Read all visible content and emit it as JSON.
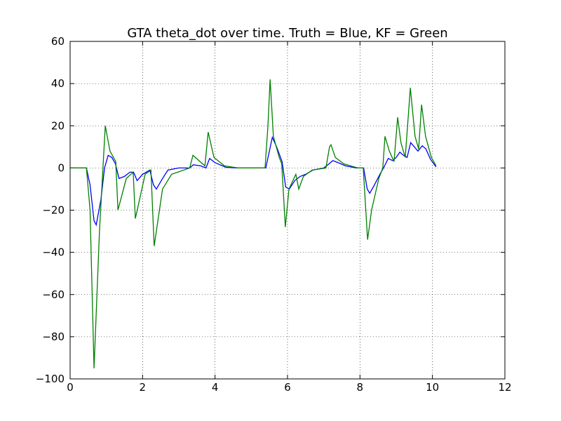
{
  "chart_data": {
    "type": "line",
    "title": "GTA theta_dot over time. Truth = Blue, KF = Green",
    "xlim": [
      0,
      12
    ],
    "xticks": [
      0,
      2,
      4,
      6,
      8,
      10,
      12
    ],
    "ylim": [
      -100,
      60
    ],
    "yticks": [
      {
        "value": -100,
        "label": "−100"
      },
      {
        "value": -80,
        "label": "−80"
      },
      {
        "value": -60,
        "label": "−60"
      },
      {
        "value": -40,
        "label": "−40"
      },
      {
        "value": -20,
        "label": "−20"
      },
      0,
      20,
      40,
      60
    ],
    "grid": true,
    "series": [
      {
        "color": "#0000ff",
        "x": [
          0,
          0.45,
          0.55,
          0.66,
          0.72,
          0.85,
          0.95,
          1.05,
          1.15,
          1.25,
          1.35,
          1.5,
          1.65,
          1.75,
          1.85,
          2.0,
          2.2,
          2.3,
          2.38,
          2.55,
          2.7,
          3.0,
          3.3,
          3.4,
          3.6,
          3.75,
          3.85,
          4.0,
          4.3,
          4.6,
          5.4,
          5.5,
          5.58,
          5.7,
          5.85,
          5.95,
          6.05,
          6.2,
          6.35,
          6.5,
          6.7,
          7.0,
          7.15,
          7.25,
          7.4,
          7.6,
          7.9,
          8.1,
          8.2,
          8.27,
          8.4,
          8.55,
          8.65,
          8.78,
          8.9,
          9.0,
          9.1,
          9.2,
          9.3,
          9.4,
          9.5,
          9.6,
          9.72,
          9.82,
          9.95,
          10.1
        ],
        "values": [
          0,
          0,
          -8,
          -25,
          -27,
          -15,
          0,
          6,
          5,
          2,
          -5,
          -4,
          -2,
          -2,
          -6,
          -3,
          -1,
          -8,
          -10,
          -5,
          -1,
          0,
          0,
          1.5,
          1,
          0,
          4.5,
          2.5,
          0.3,
          0,
          0,
          8,
          14.5,
          10,
          3,
          -9,
          -10,
          -6,
          -4,
          -3,
          -1,
          0,
          2,
          3.5,
          2.5,
          1,
          0,
          0,
          -10,
          -12,
          -8,
          -3,
          0,
          4.5,
          3.5,
          5,
          7.5,
          6,
          5,
          12,
          10,
          8,
          10.5,
          9,
          4,
          0.5
        ]
      },
      {
        "color": "#008000",
        "x": [
          0,
          0.45,
          0.55,
          0.66,
          0.81,
          0.97,
          1.1,
          1.26,
          1.32,
          1.55,
          1.74,
          1.8,
          2.07,
          2.23,
          2.32,
          2.55,
          2.8,
          3.3,
          3.39,
          3.72,
          3.81,
          3.97,
          4.26,
          4.64,
          5.38,
          5.46,
          5.52,
          5.61,
          5.77,
          5.84,
          5.94,
          6.04,
          6.23,
          6.31,
          6.44,
          6.68,
          7.06,
          7.16,
          7.2,
          7.32,
          7.55,
          7.94,
          8.09,
          8.21,
          8.32,
          8.52,
          8.63,
          8.69,
          8.81,
          8.94,
          9.04,
          9.13,
          9.25,
          9.39,
          9.52,
          9.62,
          9.7,
          9.81,
          9.97,
          10.1
        ],
        "values": [
          0,
          0,
          -20,
          -95,
          -30,
          20,
          8,
          3,
          -20,
          -5,
          -2,
          -24,
          -3,
          -1,
          -37,
          -10,
          -3,
          0,
          6,
          1,
          17,
          5,
          1,
          0,
          0,
          20,
          42,
          15,
          5,
          2,
          -28,
          -10,
          -3,
          -10,
          -4,
          -1,
          0,
          10,
          11,
          5,
          2,
          0,
          0,
          -34,
          -20,
          -5,
          0,
          15,
          8,
          3,
          24,
          12,
          5,
          38,
          15,
          9,
          30,
          15,
          5,
          1
        ]
      }
    ]
  }
}
